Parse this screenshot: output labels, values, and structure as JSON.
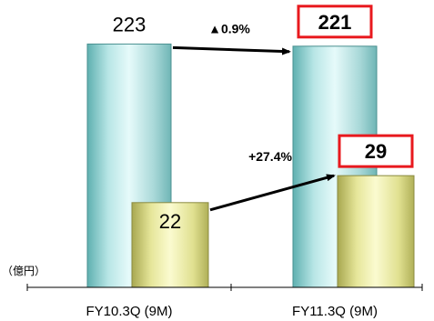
{
  "chart_data": {
    "type": "bar",
    "unit_label": "（億円）",
    "categories": [
      "FY10.3Q (9M)",
      "FY11.3Q (9M)"
    ],
    "series": [
      {
        "values": [
          223,
          221
        ],
        "color": "#9ed8d8"
      },
      {
        "values": [
          22,
          29
        ],
        "color": "#e6e69a"
      }
    ],
    "ylim": [
      0,
      250
    ],
    "grid": false,
    "annotations": [
      {
        "text": "▲0.9%",
        "series": 0
      },
      {
        "text": "+27.4%",
        "series": 1
      }
    ],
    "highlight_color": "#e8191e"
  }
}
